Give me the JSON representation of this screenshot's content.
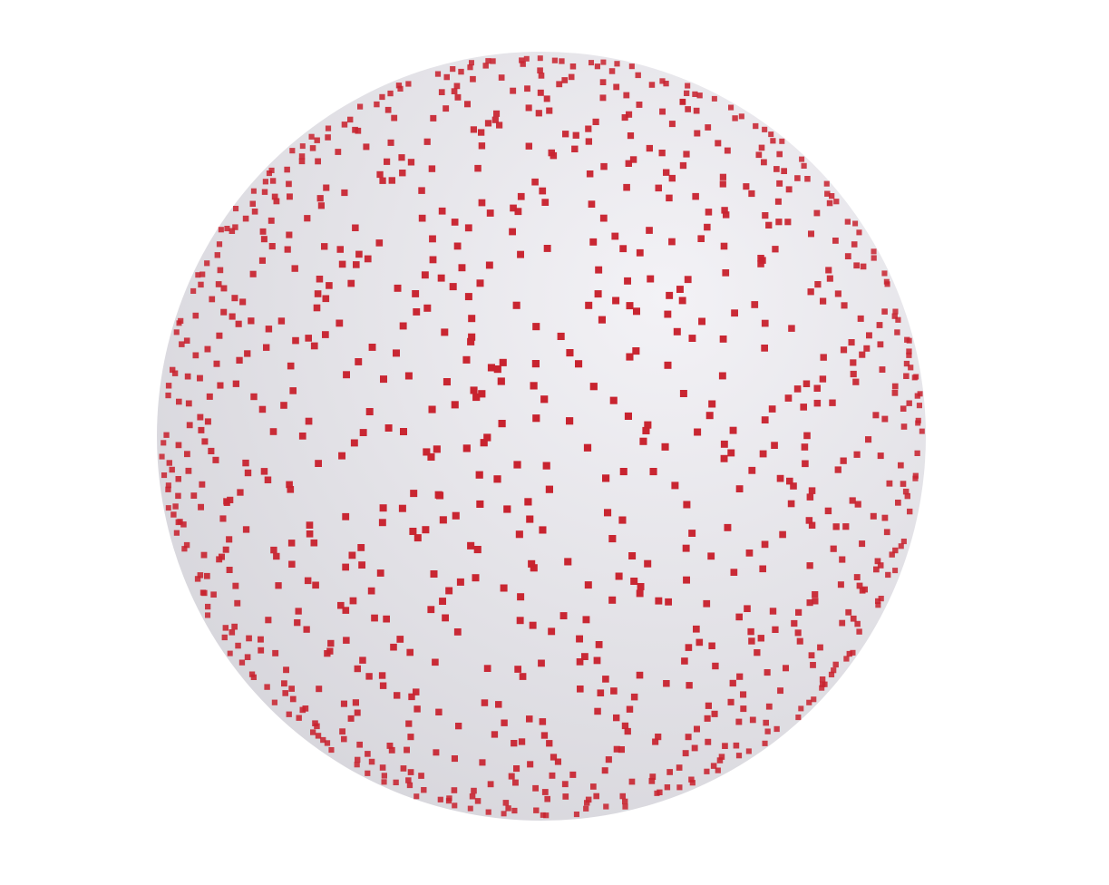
{
  "scene": {
    "subject": "sphere-with-surface-points",
    "background_color": "#ffffff",
    "sphere_color": "#e2e1e6",
    "sphere_highlight_color": "#f3f2f6",
    "sphere_shadow_color": "#d4d3d9",
    "point_color": "#c8232f",
    "point_shape": "square"
  }
}
